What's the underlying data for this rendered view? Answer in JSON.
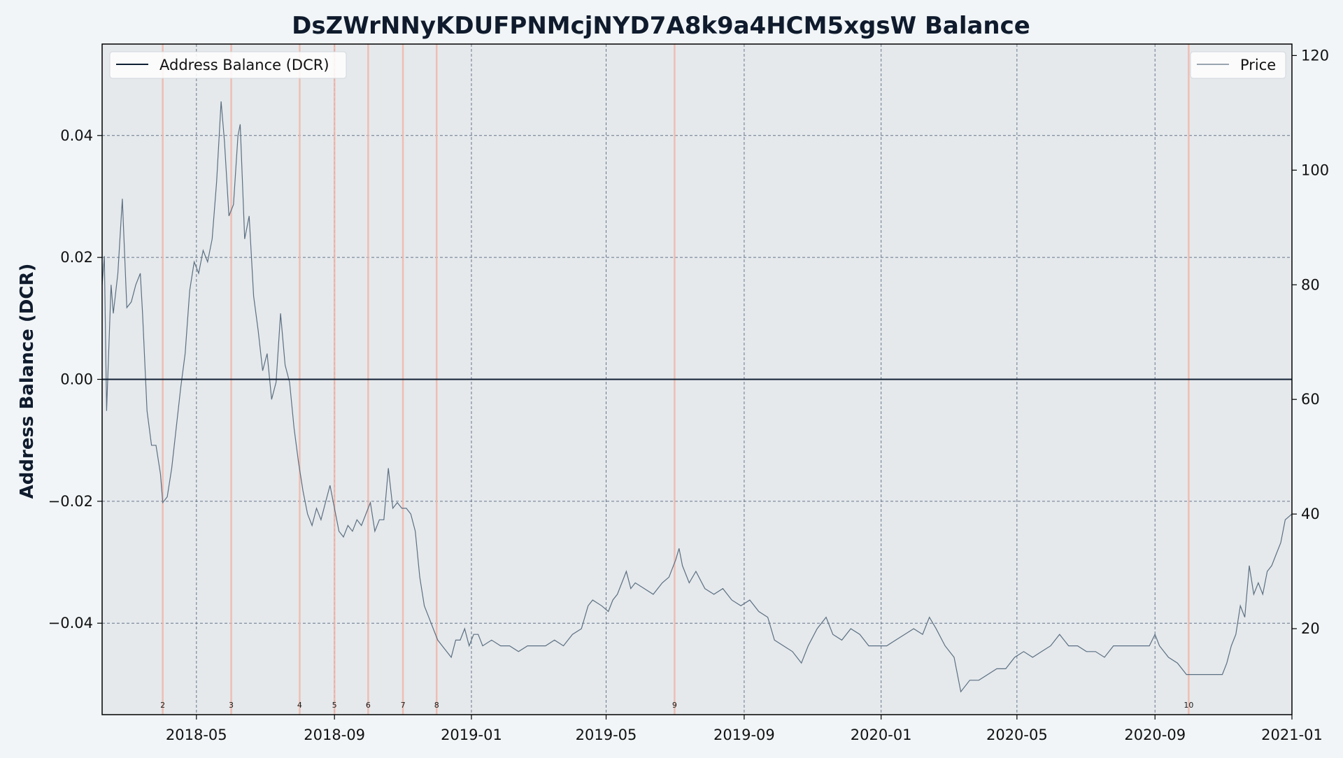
{
  "chart_data": {
    "type": "line",
    "title": "DsZWrNNyKDUFPNMcjNYD7A8k9a4HCM5xgsW Balance",
    "ylabel": "Address Balance (DCR)",
    "y2label": "",
    "xlabel": "",
    "xlim": [
      "2018-02-06",
      "2021-01-01"
    ],
    "ylim": [
      -0.055,
      0.055
    ],
    "y2lim": [
      5,
      122
    ],
    "x_tick_labels": [
      "2018-05",
      "2018-09",
      "2019-01",
      "2019-05",
      "2019-09",
      "2020-01",
      "2020-05",
      "2020-09",
      "2021-01"
    ],
    "x_tick_dates": [
      "2018-05-01",
      "2018-09-01",
      "2019-01-01",
      "2019-05-01",
      "2019-09-01",
      "2020-01-01",
      "2020-05-01",
      "2020-09-01",
      "2021-01-01"
    ],
    "y_ticks": [
      -0.04,
      -0.02,
      0.0,
      0.02,
      0.04
    ],
    "y_tick_labels": [
      "−0.04",
      "−0.02",
      "0.00",
      "0.02",
      "0.04"
    ],
    "y2_ticks": [
      20,
      40,
      60,
      80,
      100,
      120
    ],
    "y2_tick_labels": [
      "20",
      "40",
      "60",
      "80",
      "100",
      "120"
    ],
    "grid": true,
    "legend_left": "top-left",
    "legend_right": "top-right",
    "colors": {
      "figure_bg": "#f1f5f7",
      "axes_bg": "#e5e9ec",
      "balance_line": "#0f1f33",
      "price_line": "#5c6f82",
      "event_line": "#f0b7aa",
      "grid": "#5a6a80",
      "title": "#0f1b2d"
    },
    "series": [
      {
        "name": "Address Balance (DCR)",
        "axis": "left",
        "points": [
          [
            "2018-02-06",
            0.0
          ],
          [
            "2021-01-01",
            0.0
          ]
        ]
      },
      {
        "name": "Price",
        "axis": "right",
        "points": [
          [
            "2018-02-06",
            80
          ],
          [
            "2018-02-08",
            85
          ],
          [
            "2018-02-10",
            58
          ],
          [
            "2018-02-14",
            80
          ],
          [
            "2018-02-16",
            75
          ],
          [
            "2018-02-20",
            82
          ],
          [
            "2018-02-24",
            95
          ],
          [
            "2018-02-28",
            76
          ],
          [
            "2018-03-04",
            77
          ],
          [
            "2018-03-08",
            80
          ],
          [
            "2018-03-12",
            82
          ],
          [
            "2018-03-14",
            75
          ],
          [
            "2018-03-18",
            58
          ],
          [
            "2018-03-22",
            52
          ],
          [
            "2018-03-26",
            52
          ],
          [
            "2018-03-30",
            47
          ],
          [
            "2018-04-01",
            42
          ],
          [
            "2018-04-05",
            43
          ],
          [
            "2018-04-09",
            48
          ],
          [
            "2018-04-13",
            55
          ],
          [
            "2018-04-17",
            62
          ],
          [
            "2018-04-21",
            68
          ],
          [
            "2018-04-25",
            79
          ],
          [
            "2018-04-29",
            84
          ],
          [
            "2018-05-03",
            82
          ],
          [
            "2018-05-07",
            86
          ],
          [
            "2018-05-11",
            84
          ],
          [
            "2018-05-15",
            88
          ],
          [
            "2018-05-19",
            98
          ],
          [
            "2018-05-23",
            112
          ],
          [
            "2018-05-26",
            105
          ],
          [
            "2018-05-30",
            92
          ],
          [
            "2018-06-03",
            94
          ],
          [
            "2018-06-07",
            106
          ],
          [
            "2018-06-09",
            108
          ],
          [
            "2018-06-13",
            88
          ],
          [
            "2018-06-17",
            92
          ],
          [
            "2018-06-21",
            78
          ],
          [
            "2018-06-25",
            72
          ],
          [
            "2018-06-29",
            65
          ],
          [
            "2018-07-03",
            68
          ],
          [
            "2018-07-07",
            60
          ],
          [
            "2018-07-11",
            63
          ],
          [
            "2018-07-15",
            75
          ],
          [
            "2018-07-19",
            66
          ],
          [
            "2018-07-23",
            63
          ],
          [
            "2018-07-27",
            55
          ],
          [
            "2018-07-31",
            49
          ],
          [
            "2018-08-04",
            44
          ],
          [
            "2018-08-08",
            40
          ],
          [
            "2018-08-12",
            38
          ],
          [
            "2018-08-16",
            41
          ],
          [
            "2018-08-20",
            39
          ],
          [
            "2018-08-24",
            42
          ],
          [
            "2018-08-28",
            45
          ],
          [
            "2018-09-01",
            41
          ],
          [
            "2018-09-05",
            37
          ],
          [
            "2018-09-09",
            36
          ],
          [
            "2018-09-13",
            38
          ],
          [
            "2018-09-17",
            37
          ],
          [
            "2018-09-21",
            39
          ],
          [
            "2018-09-25",
            38
          ],
          [
            "2018-09-29",
            40
          ],
          [
            "2018-10-03",
            42
          ],
          [
            "2018-10-07",
            37
          ],
          [
            "2018-10-11",
            39
          ],
          [
            "2018-10-15",
            39
          ],
          [
            "2018-10-19",
            48
          ],
          [
            "2018-10-23",
            41
          ],
          [
            "2018-10-27",
            42
          ],
          [
            "2018-10-31",
            41
          ],
          [
            "2018-11-04",
            41
          ],
          [
            "2018-11-08",
            40
          ],
          [
            "2018-11-12",
            37
          ],
          [
            "2018-11-16",
            29
          ],
          [
            "2018-11-20",
            24
          ],
          [
            "2018-11-24",
            22
          ],
          [
            "2018-11-28",
            20
          ],
          [
            "2018-12-02",
            18
          ],
          [
            "2018-12-06",
            17
          ],
          [
            "2018-12-10",
            16
          ],
          [
            "2018-12-14",
            15
          ],
          [
            "2018-12-18",
            18
          ],
          [
            "2018-12-22",
            18
          ],
          [
            "2018-12-26",
            20
          ],
          [
            "2018-12-30",
            17
          ],
          [
            "2019-01-03",
            19
          ],
          [
            "2019-01-07",
            19
          ],
          [
            "2019-01-11",
            17
          ],
          [
            "2019-01-19",
            18
          ],
          [
            "2019-01-27",
            17
          ],
          [
            "2019-02-04",
            17
          ],
          [
            "2019-02-12",
            16
          ],
          [
            "2019-02-20",
            17
          ],
          [
            "2019-02-28",
            17
          ],
          [
            "2019-03-08",
            17
          ],
          [
            "2019-03-16",
            18
          ],
          [
            "2019-03-24",
            17
          ],
          [
            "2019-04-01",
            19
          ],
          [
            "2019-04-09",
            20
          ],
          [
            "2019-04-15",
            24
          ],
          [
            "2019-04-19",
            25
          ],
          [
            "2019-04-27",
            24
          ],
          [
            "2019-05-03",
            23
          ],
          [
            "2019-05-07",
            25
          ],
          [
            "2019-05-11",
            26
          ],
          [
            "2019-05-15",
            28
          ],
          [
            "2019-05-19",
            30
          ],
          [
            "2019-05-23",
            27
          ],
          [
            "2019-05-27",
            28
          ],
          [
            "2019-06-04",
            27
          ],
          [
            "2019-06-12",
            26
          ],
          [
            "2019-06-20",
            28
          ],
          [
            "2019-06-26",
            29
          ],
          [
            "2019-07-02",
            32
          ],
          [
            "2019-07-05",
            34
          ],
          [
            "2019-07-08",
            31
          ],
          [
            "2019-07-14",
            28
          ],
          [
            "2019-07-20",
            30
          ],
          [
            "2019-07-28",
            27
          ],
          [
            "2019-08-05",
            26
          ],
          [
            "2019-08-13",
            27
          ],
          [
            "2019-08-21",
            25
          ],
          [
            "2019-08-29",
            24
          ],
          [
            "2019-09-06",
            25
          ],
          [
            "2019-09-14",
            23
          ],
          [
            "2019-09-22",
            22
          ],
          [
            "2019-09-28",
            18
          ],
          [
            "2019-10-06",
            17
          ],
          [
            "2019-10-14",
            16
          ],
          [
            "2019-10-22",
            14
          ],
          [
            "2019-10-28",
            17
          ],
          [
            "2019-11-05",
            20
          ],
          [
            "2019-11-13",
            22
          ],
          [
            "2019-11-19",
            19
          ],
          [
            "2019-11-27",
            18
          ],
          [
            "2019-12-05",
            20
          ],
          [
            "2019-12-13",
            19
          ],
          [
            "2019-12-21",
            17
          ],
          [
            "2019-12-29",
            17
          ],
          [
            "2020-01-06",
            17
          ],
          [
            "2020-01-14",
            18
          ],
          [
            "2020-01-22",
            19
          ],
          [
            "2020-01-30",
            20
          ],
          [
            "2020-02-07",
            19
          ],
          [
            "2020-02-13",
            22
          ],
          [
            "2020-02-19",
            20
          ],
          [
            "2020-02-27",
            17
          ],
          [
            "2020-03-06",
            15
          ],
          [
            "2020-03-12",
            9
          ],
          [
            "2020-03-20",
            11
          ],
          [
            "2020-03-28",
            11
          ],
          [
            "2020-04-05",
            12
          ],
          [
            "2020-04-13",
            13
          ],
          [
            "2020-04-21",
            13
          ],
          [
            "2020-04-29",
            15
          ],
          [
            "2020-05-07",
            16
          ],
          [
            "2020-05-15",
            15
          ],
          [
            "2020-05-23",
            16
          ],
          [
            "2020-05-31",
            17
          ],
          [
            "2020-06-08",
            19
          ],
          [
            "2020-06-16",
            17
          ],
          [
            "2020-06-24",
            17
          ],
          [
            "2020-07-02",
            16
          ],
          [
            "2020-07-10",
            16
          ],
          [
            "2020-07-18",
            15
          ],
          [
            "2020-07-26",
            17
          ],
          [
            "2020-08-03",
            17
          ],
          [
            "2020-08-11",
            17
          ],
          [
            "2020-08-19",
            17
          ],
          [
            "2020-08-27",
            17
          ],
          [
            "2020-09-01",
            19
          ],
          [
            "2020-09-05",
            17
          ],
          [
            "2020-09-13",
            15
          ],
          [
            "2020-09-21",
            14
          ],
          [
            "2020-09-29",
            12
          ],
          [
            "2020-10-07",
            12
          ],
          [
            "2020-10-15",
            12
          ],
          [
            "2020-10-23",
            12
          ],
          [
            "2020-10-31",
            12
          ],
          [
            "2020-11-04",
            14
          ],
          [
            "2020-11-08",
            17
          ],
          [
            "2020-11-12",
            19
          ],
          [
            "2020-11-16",
            24
          ],
          [
            "2020-11-20",
            22
          ],
          [
            "2020-11-24",
            31
          ],
          [
            "2020-11-28",
            26
          ],
          [
            "2020-12-02",
            28
          ],
          [
            "2020-12-06",
            26
          ],
          [
            "2020-12-10",
            30
          ],
          [
            "2020-12-14",
            31
          ],
          [
            "2020-12-18",
            33
          ],
          [
            "2020-12-22",
            35
          ],
          [
            "2020-12-26",
            39
          ],
          [
            "2021-01-01",
            40
          ]
        ]
      }
    ],
    "event_markers": [
      {
        "date": "2018-04-01",
        "label": "2"
      },
      {
        "date": "2018-06-01",
        "label": "3"
      },
      {
        "date": "2018-08-01",
        "label": "4"
      },
      {
        "date": "2018-09-01",
        "label": "5"
      },
      {
        "date": "2018-10-01",
        "label": "6"
      },
      {
        "date": "2018-11-01",
        "label": "7"
      },
      {
        "date": "2018-12-01",
        "label": "8"
      },
      {
        "date": "2019-07-01",
        "label": "9"
      },
      {
        "date": "2020-10-01",
        "label": "10"
      }
    ]
  }
}
